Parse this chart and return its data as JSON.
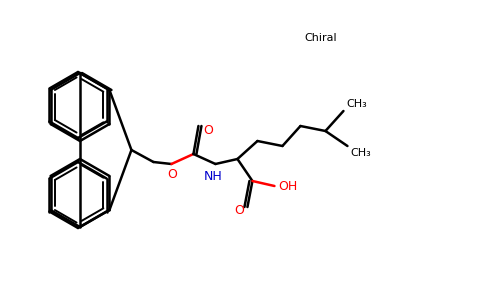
{
  "background_color": "#ffffff",
  "bond_color": "#000000",
  "oxygen_color": "#ff0000",
  "nitrogen_color": "#0000cd",
  "chiral_label": "Chiral",
  "ch3_label": "CH₃",
  "nh_label": "NH",
  "oh_label": "OH",
  "o_label": "O",
  "figsize": [
    4.84,
    3.0
  ],
  "dpi": 100
}
